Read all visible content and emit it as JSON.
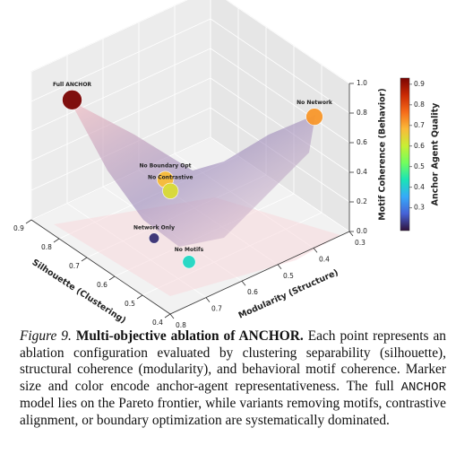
{
  "chart_data": {
    "type": "scatter3d",
    "xlabel": "Silhouette (Clustering)",
    "ylabel": "Modularity (Structure)",
    "zlabel": "Motif Coherence (Behavior)",
    "colorbar_label": "Anchor Agent Quality",
    "xlim": [
      0.4,
      0.9
    ],
    "xticks": [
      0.4,
      0.5,
      0.6,
      0.7,
      0.8,
      0.9
    ],
    "ylim": [
      0.3,
      0.8
    ],
    "yticks": [
      0.3,
      0.4,
      0.5,
      0.6,
      0.7,
      0.8
    ],
    "zlim": [
      0,
      1
    ],
    "zticks": [
      {
        "value": 0,
        "label": "0.0"
      },
      0.2,
      0.4,
      0.6,
      0.8,
      {
        "value": 1,
        "label": "1.0"
      }
    ],
    "clim": [
      0.19,
      0.93
    ],
    "cticks": [
      0.3,
      0.4,
      0.5,
      0.6,
      0.7,
      0.8,
      0.9
    ],
    "colormap": [
      "#30123b",
      "#4662d7",
      "#36aaf9",
      "#1ae4b6",
      "#72fe5e",
      "#c8ef34",
      "#faba39",
      "#f66b19",
      "#ca2a04",
      "#7a0403"
    ],
    "points": [
      {
        "name": "Full ANCHOR",
        "silhouette": 0.85,
        "modularity": 0.725,
        "motif": 0.79,
        "quality": 0.93,
        "label_color": "#8b0000"
      },
      {
        "name": "No Network",
        "silhouette": 0.5,
        "modularity": 0.32,
        "motif": 0.67,
        "quality": 0.72
      },
      {
        "name": "No Boundary Opt",
        "silhouette": 0.65,
        "modularity": 0.62,
        "motif": 0.39,
        "quality": 0.68
      },
      {
        "name": "No Contrastive",
        "silhouette": 0.625,
        "modularity": 0.625,
        "motif": 0.35,
        "quality": 0.63
      },
      {
        "name": "Network Only",
        "silhouette": 0.6,
        "modularity": 0.69,
        "motif": 0.135,
        "quality": 0.22
      },
      {
        "name": "No Motifs",
        "silhouette": 0.5,
        "modularity": 0.67,
        "motif": 0.08,
        "quality": 0.42
      }
    ]
  },
  "caption": {
    "label": "Figure 9.",
    "title": "Multi-objective ablation of ANCHOR.",
    "text": "Each point represents an ablation configuration evaluated by clustering separability (silhouette), structural coherence (modularity), and behavioral motif coherence. Marker size and color encode anchor-agent representativeness. The full",
    "code": "ANCHOR",
    "text_end": "model lies on the Pareto frontier, while variants removing motifs, contrastive alignment, or boundary optimization are systematically dominated."
  }
}
